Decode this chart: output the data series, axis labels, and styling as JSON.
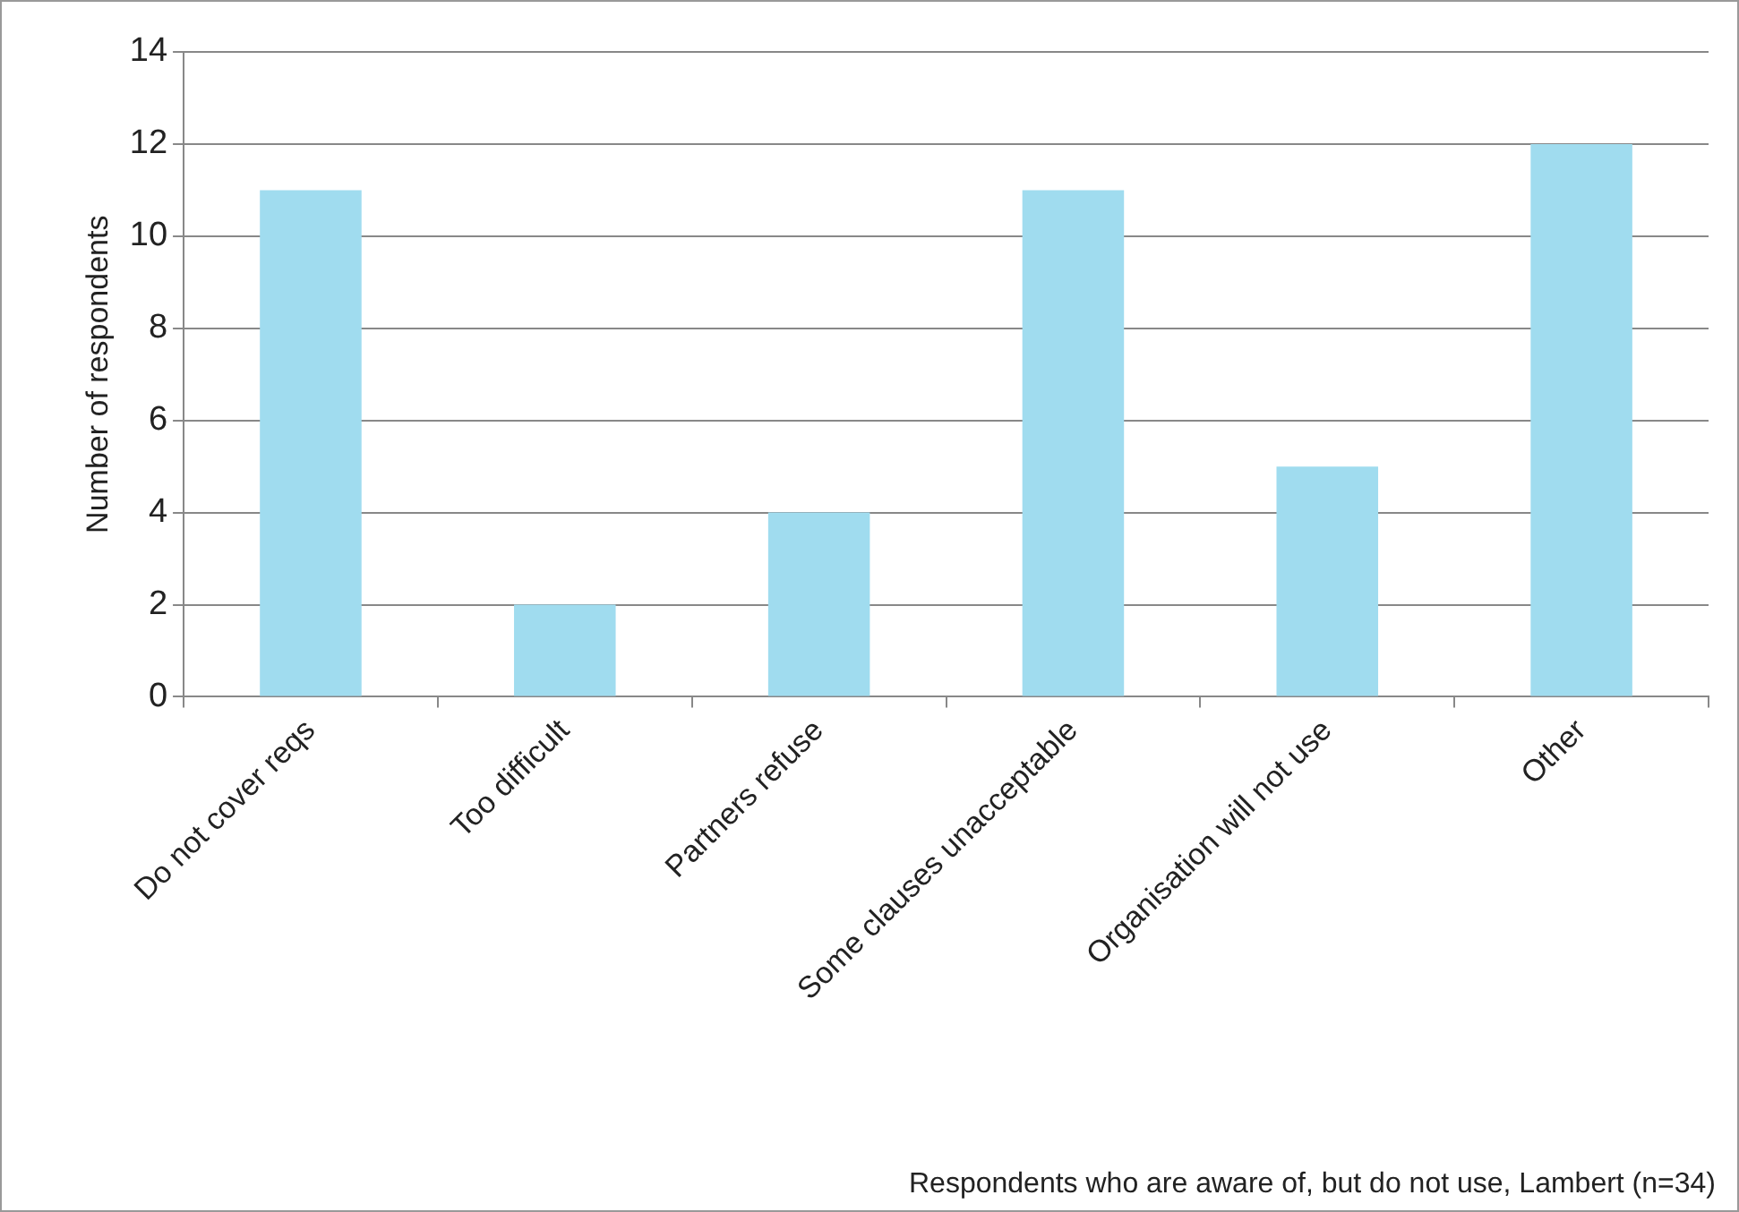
{
  "chart_data": {
    "type": "bar",
    "categories": [
      "Do not cover reqs",
      "Too difficult",
      "Partners refuse",
      "Some clauses unacceptable",
      "Organisation will not use",
      "Other"
    ],
    "values": [
      11,
      2,
      4,
      11,
      5,
      12
    ],
    "color": "#a0dcef",
    "ylabel": "Number of respondents",
    "ylim": [
      0,
      14
    ],
    "yticks": [
      0,
      2,
      4,
      6,
      8,
      10,
      12,
      14
    ],
    "grid": "y",
    "legend": false,
    "annotations": [
      "Respondents who are aware of, but do not use, Lambert (n=34)"
    ]
  }
}
